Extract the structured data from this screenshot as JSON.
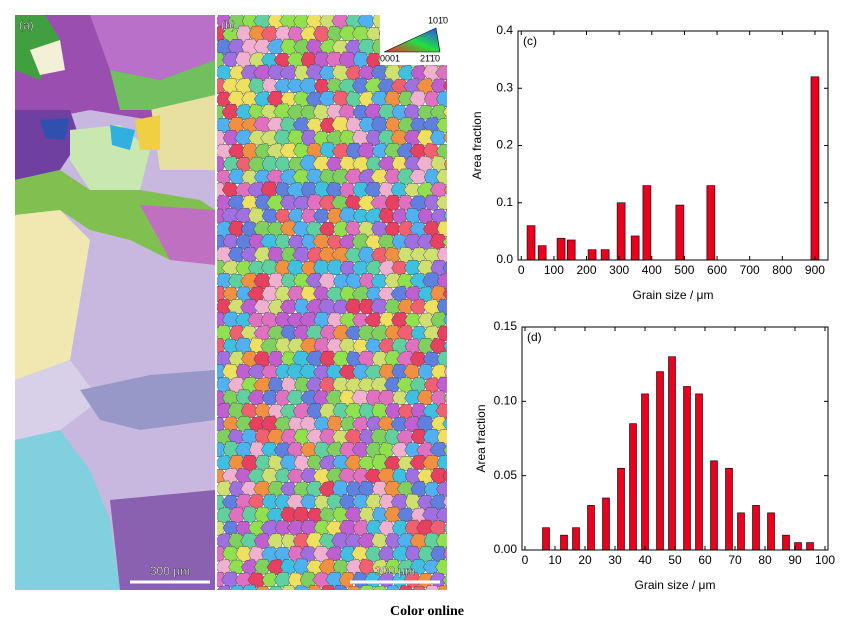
{
  "images": [
    {
      "label": "(a)",
      "scale_bar": "300 μm"
    },
    {
      "label": "(b)",
      "scale_bar": "300 μm"
    }
  ],
  "ipf_legend": {
    "top": "101̄0",
    "left": "0001",
    "right": "21̄1̄0"
  },
  "caption": "Color online",
  "chart_data": [
    {
      "type": "bar",
      "label": "(c)",
      "xlabel": "Grain size / μm",
      "ylabel": "Area fraction",
      "color": "#e8001c",
      "x": [
        30,
        64,
        122,
        153,
        217,
        257,
        306,
        349,
        385,
        486,
        581,
        900
      ],
      "values": [
        0.06,
        0.025,
        0.038,
        0.035,
        0.018,
        0.018,
        0.1,
        0.042,
        0.13,
        0.096,
        0.13,
        0.32
      ],
      "xlim": [
        -10,
        940
      ],
      "xticks": [
        0,
        100,
        200,
        300,
        400,
        500,
        600,
        700,
        800,
        900
      ],
      "ylim": [
        0,
        0.4
      ],
      "yticks": [
        {
          "value": 0,
          "label": "0.0"
        },
        0.1,
        0.2,
        0.3,
        0.4
      ]
    },
    {
      "type": "bar",
      "label": "(d)",
      "xlabel": "Grain size / μm",
      "ylabel": "Area fraction",
      "color": "#e8001c",
      "x": [
        7,
        13,
        17,
        22,
        27,
        32,
        36,
        40,
        45,
        49,
        54,
        58,
        63,
        68,
        72,
        77,
        82,
        87,
        91,
        95
      ],
      "values": [
        0.015,
        0.01,
        0.015,
        0.03,
        0.035,
        0.055,
        0.085,
        0.105,
        0.12,
        0.13,
        0.11,
        0.105,
        0.06,
        0.055,
        0.025,
        0.03,
        0.025,
        0.01,
        0.005,
        0.005
      ],
      "xlim": [
        -1,
        101
      ],
      "xticks": [
        0,
        10,
        20,
        30,
        40,
        50,
        60,
        70,
        80,
        90,
        100
      ],
      "ylim": [
        0,
        0.15
      ],
      "yticks": [
        {
          "value": 0,
          "label": "0.00"
        },
        0.05,
        {
          "value": 0.1,
          "label": "0.10"
        },
        0.15
      ]
    }
  ]
}
